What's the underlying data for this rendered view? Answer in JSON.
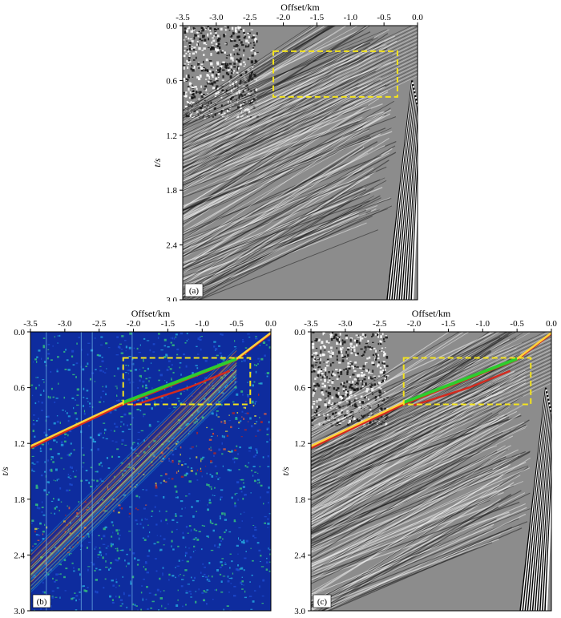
{
  "chart_data": [
    {
      "type": "heatmap",
      "panel_label": "(a)",
      "colormap": "grayscale",
      "xlabel": "Offset/km",
      "ylabel": "t/s",
      "x_axis_position": "top",
      "xlim": [
        -3.5,
        0.0
      ],
      "ylim": [
        0.0,
        3.0
      ],
      "y_inverted": true,
      "x_ticks": [
        "-3.5",
        "-3.0",
        "-2.5",
        "-2.0",
        "-1.5",
        "-1.0",
        "-0.5",
        "0.0"
      ],
      "y_ticks": [
        "0.0",
        "0.6",
        "1.2",
        "1.8",
        "2.4",
        "3.0"
      ],
      "highlight_box": {
        "x": [
          -2.15,
          -0.3
        ],
        "y": [
          0.28,
          0.78
        ],
        "color": "#f4e41c",
        "style": "dashed"
      },
      "picked_curves": []
    },
    {
      "type": "heatmap",
      "panel_label": "(b)",
      "colormap": "jet",
      "xlabel": "Offset/km",
      "ylabel": "t/s",
      "x_axis_position": "top",
      "xlim": [
        -3.5,
        0.0
      ],
      "ylim": [
        0.0,
        3.0
      ],
      "y_inverted": true,
      "x_ticks": [
        "-3.5",
        "-3.0",
        "-2.5",
        "-2.0",
        "-1.5",
        "-1.0",
        "-0.5",
        "0.0"
      ],
      "y_ticks": [
        "0.0",
        "0.6",
        "1.2",
        "1.8",
        "2.4",
        "3.0"
      ],
      "highlight_box": {
        "x": [
          -2.15,
          -0.3
        ],
        "y": [
          0.28,
          0.78
        ],
        "color": "#f4e41c",
        "style": "dashed"
      },
      "picked_curves": [
        {
          "color": "#d42a1e",
          "x": [
            -3.5,
            -2.15,
            -0.5,
            0.0
          ],
          "y": [
            1.25,
            0.78,
            0.3,
            0.02
          ]
        },
        {
          "color": "#ffd23a",
          "x": [
            -3.5,
            -2.15,
            -0.5,
            0.0
          ],
          "y": [
            1.23,
            0.76,
            0.29,
            0.01
          ]
        },
        {
          "color": "#2ecc2e",
          "x": [
            -2.15,
            -0.5
          ],
          "y": [
            0.76,
            0.29
          ]
        },
        {
          "color": "#d42a1e",
          "x": [
            -2.0,
            -1.2,
            -0.6
          ],
          "y": [
            0.79,
            0.6,
            0.42
          ]
        }
      ]
    },
    {
      "type": "heatmap",
      "panel_label": "(c)",
      "colormap": "grayscale",
      "xlabel": "Offset/km",
      "ylabel": "t/s",
      "x_axis_position": "top",
      "xlim": [
        -3.5,
        0.0
      ],
      "ylim": [
        0.0,
        3.0
      ],
      "y_inverted": true,
      "x_ticks": [
        "-3.5",
        "-3.0",
        "-2.5",
        "-2.0",
        "-1.5",
        "-1.0",
        "-0.5",
        "0.0"
      ],
      "y_ticks": [
        "0.0",
        "0.6",
        "1.2",
        "1.8",
        "2.4",
        "3.0"
      ],
      "highlight_box": {
        "x": [
          -2.15,
          -0.3
        ],
        "y": [
          0.28,
          0.78
        ],
        "color": "#f4e41c",
        "style": "dashed"
      },
      "picked_curves": [
        {
          "color": "#d42a1e",
          "x": [
            -3.5,
            -2.15,
            -0.5,
            0.0
          ],
          "y": [
            1.25,
            0.78,
            0.3,
            0.02
          ]
        },
        {
          "color": "#ffd23a",
          "x": [
            -3.5,
            -2.15,
            -0.5,
            0.0
          ],
          "y": [
            1.23,
            0.76,
            0.29,
            0.01
          ]
        },
        {
          "color": "#2ecc2e",
          "x": [
            -2.15,
            -0.5
          ],
          "y": [
            0.76,
            0.29
          ]
        },
        {
          "color": "#d42a1e",
          "x": [
            -2.0,
            -1.2,
            -0.6
          ],
          "y": [
            0.79,
            0.6,
            0.42
          ]
        }
      ]
    }
  ]
}
